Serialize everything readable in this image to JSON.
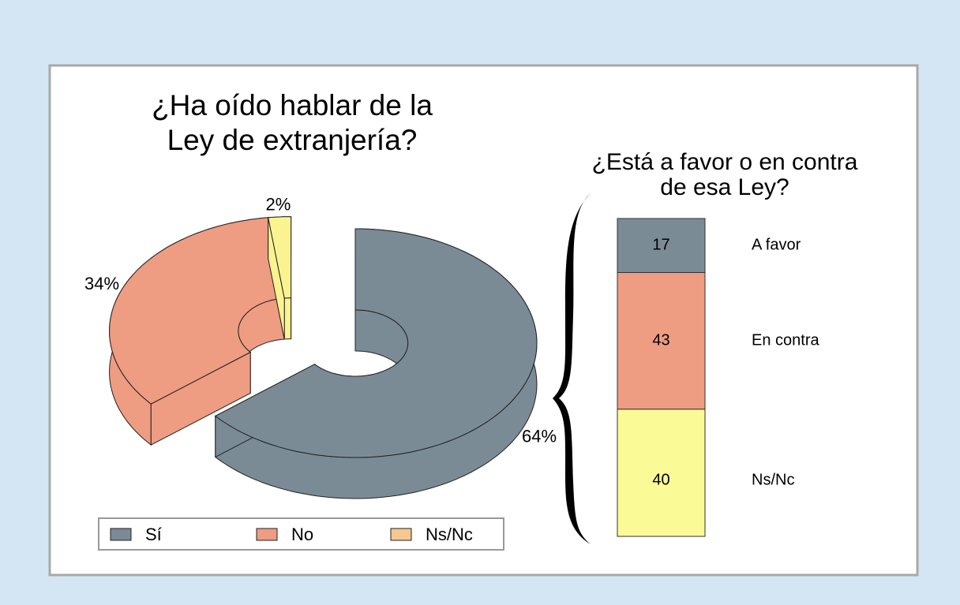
{
  "chart_data": [
    {
      "type": "pie",
      "title": "¿Ha oído hablar de la\nLey de extranjería?",
      "categories": [
        "Sí",
        "No",
        "Ns/Nc"
      ],
      "values": [
        64,
        34,
        2
      ],
      "value_labels": [
        "64%",
        "34%",
        "2%"
      ],
      "colors": [
        "#7b8b96",
        "#ee9c82",
        "#fbf38f"
      ],
      "legend_colors": [
        "#7b8b96",
        "#ee9c82",
        "#f5c890"
      ],
      "legend": "bottom"
    },
    {
      "type": "stacked_bar",
      "title": "¿Está a favor o en contra\nde esa Ley?",
      "series": [
        {
          "name": "A favor",
          "color": "#7b8b96",
          "values": [
            17
          ]
        },
        {
          "name": "En contra",
          "color": "#ee9c82",
          "values": [
            43
          ]
        },
        {
          "name": "Ns/Nc",
          "color": "#fafa96",
          "values": [
            40
          ]
        }
      ]
    }
  ]
}
